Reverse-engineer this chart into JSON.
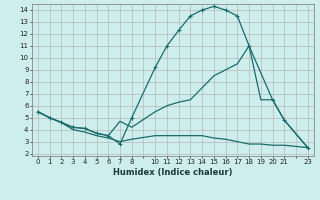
{
  "xlabel": "Humidex (Indice chaleur)",
  "bg_color": "#ceeeed",
  "grid_color": "#b8b8b8",
  "line_color": "#1a6b6b",
  "xlim": [
    -0.5,
    23.5
  ],
  "ylim": [
    1.8,
    14.5
  ],
  "xticks": [
    0,
    1,
    2,
    3,
    4,
    5,
    6,
    7,
    8,
    10,
    11,
    12,
    13,
    14,
    15,
    16,
    17,
    18,
    19,
    20,
    21,
    23
  ],
  "yticks": [
    2,
    3,
    4,
    5,
    6,
    7,
    8,
    9,
    10,
    11,
    12,
    13,
    14
  ],
  "line1_x": [
    0,
    1,
    2,
    3,
    4,
    5,
    6,
    7,
    8,
    10,
    11,
    12,
    13,
    14,
    15,
    16,
    17,
    18,
    20,
    21,
    23
  ],
  "line1_y": [
    5.5,
    5.0,
    4.6,
    4.2,
    4.1,
    3.7,
    3.5,
    2.8,
    5.0,
    9.2,
    11.0,
    12.3,
    13.5,
    14.0,
    14.3,
    14.0,
    13.5,
    11.0,
    6.5,
    4.8,
    2.5
  ],
  "line2_x": [
    0,
    1,
    2,
    3,
    4,
    5,
    6,
    7,
    8,
    10,
    11,
    12,
    13,
    14,
    15,
    16,
    17,
    18,
    19,
    20,
    21,
    23
  ],
  "line2_y": [
    5.5,
    5.0,
    4.6,
    4.2,
    4.1,
    3.7,
    3.5,
    4.7,
    4.2,
    5.5,
    6.0,
    6.3,
    6.5,
    7.5,
    8.5,
    9.0,
    9.5,
    11.0,
    6.5,
    6.5,
    4.8,
    2.5
  ],
  "line3_x": [
    0,
    1,
    2,
    3,
    4,
    5,
    6,
    7,
    8,
    10,
    11,
    12,
    13,
    14,
    15,
    16,
    17,
    18,
    19,
    20,
    21,
    23
  ],
  "line3_y": [
    5.5,
    5.0,
    4.6,
    4.0,
    3.8,
    3.5,
    3.3,
    3.0,
    3.2,
    3.5,
    3.5,
    3.5,
    3.5,
    3.5,
    3.3,
    3.2,
    3.0,
    2.8,
    2.8,
    2.7,
    2.7,
    2.5
  ]
}
